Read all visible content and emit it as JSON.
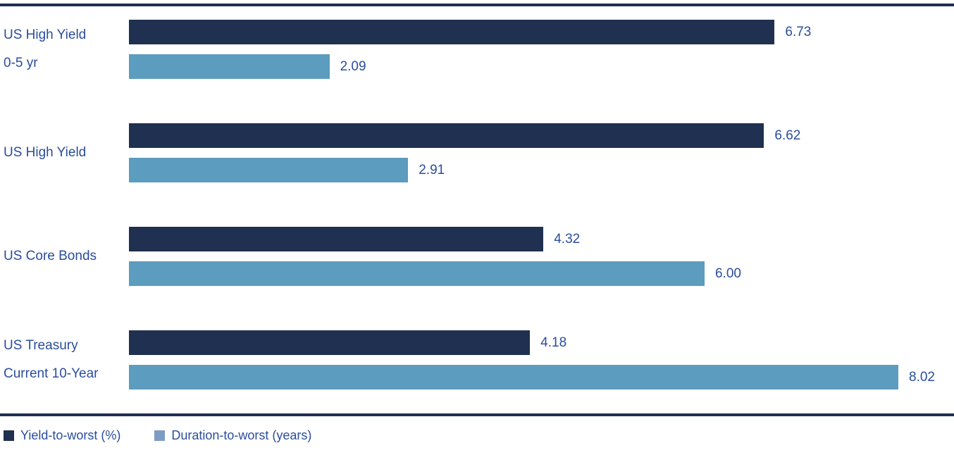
{
  "colors": {
    "text": "#2a4d9c",
    "rule": "#1f3050",
    "background": "#ffffff",
    "yield_bar": "#1f3050",
    "duration_bar": "#5c9cbe"
  },
  "chart_data": {
    "type": "bar",
    "orientation": "horizontal",
    "categories": [
      "US High Yield 0-5 yr",
      "US High Yield",
      "US Core Bonds",
      "US Treasury Current 10-Year"
    ],
    "category_lines": [
      [
        "US High Yield",
        "0-5 yr"
      ],
      [
        "US High Yield"
      ],
      [
        "US Core Bonds"
      ],
      [
        "US Treasury",
        "Current 10-Year"
      ]
    ],
    "series": [
      {
        "name": "Yield-to-worst (%)",
        "color": "#1f3050",
        "values": [
          6.73,
          6.62,
          4.32,
          4.18
        ],
        "labels": [
          "6.73",
          "6.62",
          "4.32",
          "4.18"
        ]
      },
      {
        "name": "Duration-to-worst (years)",
        "color": "#5c9cbe",
        "values": [
          2.09,
          2.91,
          6.0,
          8.02
        ],
        "labels": [
          "2.09",
          "2.91",
          "6.00",
          "8.02"
        ]
      }
    ],
    "xlim": [
      0,
      8.6
    ],
    "grid": false,
    "value_labels": true,
    "legend_position": "bottom"
  },
  "legend": {
    "items": [
      {
        "label": "Yield-to-worst (%)",
        "marker_color": "#1f3050"
      },
      {
        "label": "Duration-to-worst (years)",
        "marker_color": "#7d9cc3"
      }
    ]
  }
}
